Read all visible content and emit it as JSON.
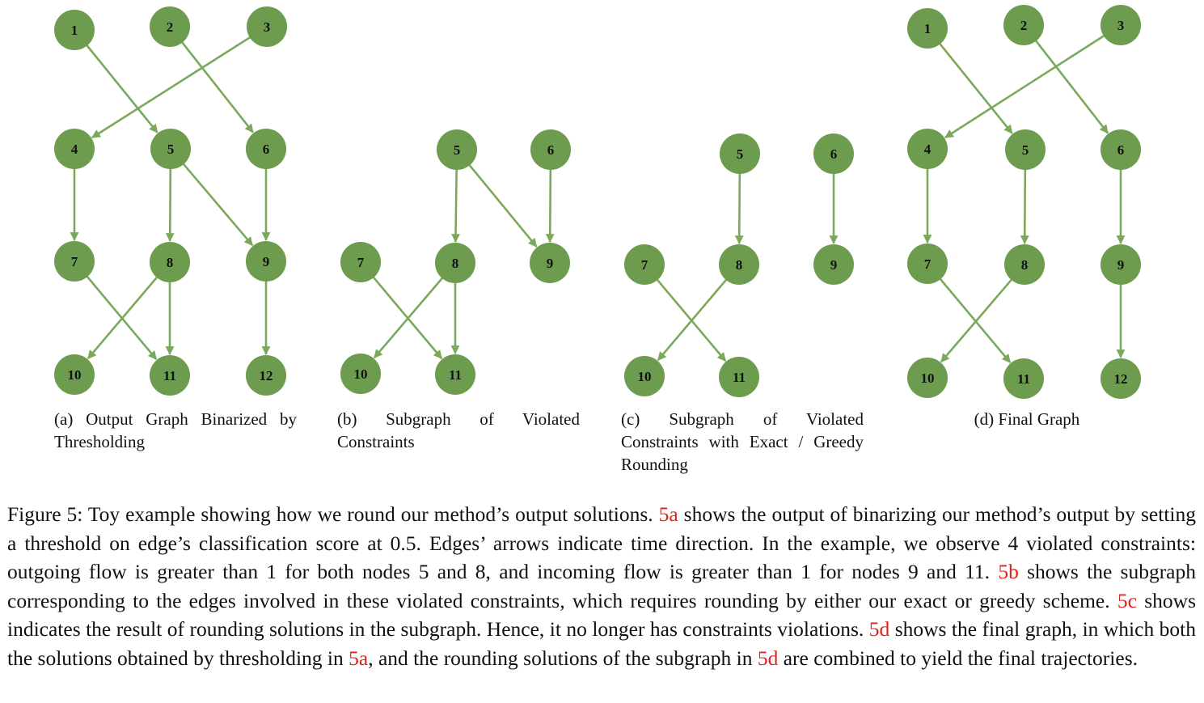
{
  "node_color": "#6e9c4f",
  "edge_color": "#7aa95c",
  "ref_color": "#e0201b",
  "panels": [
    {
      "id": "a",
      "nodes": [
        {
          "id": "1"
        },
        {
          "id": "2"
        },
        {
          "id": "3"
        },
        {
          "id": "4"
        },
        {
          "id": "5"
        },
        {
          "id": "6"
        },
        {
          "id": "7"
        },
        {
          "id": "8"
        },
        {
          "id": "9"
        },
        {
          "id": "10"
        },
        {
          "id": "11"
        },
        {
          "id": "12"
        }
      ],
      "edges": [
        [
          "1",
          "5"
        ],
        [
          "2",
          "6"
        ],
        [
          "3",
          "4"
        ],
        [
          "4",
          "7"
        ],
        [
          "5",
          "8"
        ],
        [
          "5",
          "9"
        ],
        [
          "6",
          "9"
        ],
        [
          "7",
          "11"
        ],
        [
          "8",
          "10"
        ],
        [
          "8",
          "11"
        ],
        [
          "9",
          "12"
        ]
      ],
      "caption": "(a) Output Graph Binarized by Thresholding"
    },
    {
      "id": "b",
      "nodes": [
        {
          "id": "5"
        },
        {
          "id": "6"
        },
        {
          "id": "7"
        },
        {
          "id": "8"
        },
        {
          "id": "9"
        },
        {
          "id": "10"
        },
        {
          "id": "11"
        }
      ],
      "edges": [
        [
          "5",
          "8"
        ],
        [
          "5",
          "9"
        ],
        [
          "6",
          "9"
        ],
        [
          "7",
          "11"
        ],
        [
          "8",
          "10"
        ],
        [
          "8",
          "11"
        ]
      ],
      "caption": "(b) Subgraph of Violated Constraints"
    },
    {
      "id": "c",
      "nodes": [
        {
          "id": "5"
        },
        {
          "id": "6"
        },
        {
          "id": "7"
        },
        {
          "id": "8"
        },
        {
          "id": "9"
        },
        {
          "id": "10"
        },
        {
          "id": "11"
        }
      ],
      "edges": [
        [
          "5",
          "8"
        ],
        [
          "6",
          "9"
        ],
        [
          "7",
          "11"
        ],
        [
          "8",
          "10"
        ]
      ],
      "caption": "(c) Subgraph of Violated Constraints with Exact / Greedy Rounding"
    },
    {
      "id": "d",
      "nodes": [
        {
          "id": "1"
        },
        {
          "id": "2"
        },
        {
          "id": "3"
        },
        {
          "id": "4"
        },
        {
          "id": "5"
        },
        {
          "id": "6"
        },
        {
          "id": "7"
        },
        {
          "id": "8"
        },
        {
          "id": "9"
        },
        {
          "id": "10"
        },
        {
          "id": "11"
        },
        {
          "id": "12"
        }
      ],
      "edges": [
        [
          "1",
          "5"
        ],
        [
          "2",
          "6"
        ],
        [
          "3",
          "4"
        ],
        [
          "4",
          "7"
        ],
        [
          "5",
          "8"
        ],
        [
          "6",
          "9"
        ],
        [
          "7",
          "11"
        ],
        [
          "8",
          "10"
        ],
        [
          "9",
          "12"
        ]
      ],
      "caption": "(d) Final Graph"
    }
  ],
  "caption": {
    "t1": "Figure 5: Toy example showing how we round our method’s output solutions. ",
    "r1": "5a",
    "t2": " shows the output of binarizing our method’s output by setting a threshold on edge’s classification score at 0.5. Edges’ arrows indicate time direction. In the example, we observe 4 violated constraints: outgoing flow is greater than 1 for both nodes 5 and 8, and incoming flow is greater than 1 for nodes 9 and 11. ",
    "r2": "5b",
    "t3": " shows the subgraph corresponding to the edges involved in these violated constraints, which requires rounding by either our exact or greedy scheme. ",
    "r3": "5c",
    "t4": " shows indicates the result of rounding solutions in the subgraph. Hence, it no longer has constraints violations. ",
    "r4": "5d",
    "t5": " shows the final graph, in which both the solutions obtained by thresholding in ",
    "r5": "5a",
    "t6": ", and the rounding solutions of the subgraph in ",
    "r6": "5d",
    "t7": " are combined to yield the final trajectories."
  }
}
